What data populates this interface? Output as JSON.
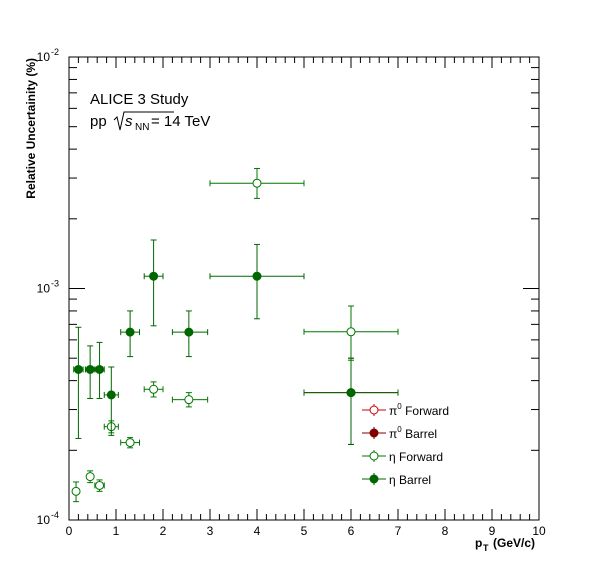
{
  "chart_data": {
    "type": "scatter",
    "title": "",
    "annotation": {
      "line1": "ALICE 3 Study",
      "line2_prefix": "pp",
      "line2_sqrt": "s",
      "line2_sub": "NN",
      "line2_suffix": "= 14 TeV"
    },
    "xlabel": {
      "main": "p",
      "sub": "T",
      "unit": "(GeV/c)"
    },
    "ylabel": "Relative Uncertainity (%)",
    "xlim": [
      0,
      10
    ],
    "ylim": [
      0.0001,
      0.01
    ],
    "yscale": "log",
    "grid": false,
    "legend_position": "bottom-right",
    "x_ticks": [
      {
        "value": 0,
        "label": "0"
      },
      {
        "value": 1,
        "label": "1"
      },
      {
        "value": 2,
        "label": "2"
      },
      {
        "value": 3,
        "label": "3"
      },
      {
        "value": 4,
        "label": "4"
      },
      {
        "value": 5,
        "label": "5"
      },
      {
        "value": 6,
        "label": "6"
      },
      {
        "value": 7,
        "label": "7"
      },
      {
        "value": 8,
        "label": "8"
      },
      {
        "value": 9,
        "label": "9"
      },
      {
        "value": 10,
        "label": "10"
      }
    ],
    "y_ticks": [
      {
        "value": 0.0001,
        "base": "10",
        "exp": "-4"
      },
      {
        "value": 0.001,
        "base": "10",
        "exp": "-3"
      },
      {
        "value": 0.01,
        "base": "10",
        "exp": "-2"
      }
    ],
    "series": [
      {
        "name": "Forward",
        "name_symbol": "π",
        "name_sup": "0",
        "color": "#cc0000",
        "marker": "open-circle",
        "points": []
      },
      {
        "name": "Barrel",
        "name_symbol": "π",
        "name_sup": "0",
        "color": "#800000",
        "marker": "filled-circle",
        "points": [
          {
            "x": 6.0,
            "y": 0.000355,
            "xlo": 5.0,
            "xhi": 7.0,
            "ylo": 0.000212,
            "yhi": 0.0005
          }
        ]
      },
      {
        "name": "Forward",
        "name_symbol": "η",
        "name_sup": "",
        "color": "#007700",
        "marker": "open-circle",
        "points": [
          {
            "x": 0.15,
            "y": 0.000133,
            "xlo": 0.1,
            "xhi": 0.2,
            "ylo": 0.00012,
            "yhi": 0.000146
          },
          {
            "x": 0.45,
            "y": 0.000154,
            "xlo": 0.4,
            "xhi": 0.5,
            "ylo": 0.000145,
            "yhi": 0.000163
          },
          {
            "x": 0.65,
            "y": 0.000141,
            "xlo": 0.55,
            "xhi": 0.75,
            "ylo": 0.000133,
            "yhi": 0.000149
          },
          {
            "x": 0.9,
            "y": 0.000253,
            "xlo": 0.75,
            "xhi": 1.05,
            "ylo": 0.000238,
            "yhi": 0.000268
          },
          {
            "x": 1.3,
            "y": 0.000216,
            "xlo": 1.1,
            "xhi": 1.5,
            "ylo": 0.000205,
            "yhi": 0.000227
          },
          {
            "x": 1.8,
            "y": 0.000367,
            "xlo": 1.6,
            "xhi": 2.0,
            "ylo": 0.00034,
            "yhi": 0.000395
          },
          {
            "x": 2.55,
            "y": 0.000331,
            "xlo": 2.2,
            "xhi": 2.95,
            "ylo": 0.000308,
            "yhi": 0.000355
          },
          {
            "x": 4.0,
            "y": 0.00285,
            "xlo": 3.0,
            "xhi": 5.0,
            "ylo": 0.00245,
            "yhi": 0.0033
          },
          {
            "x": 6.0,
            "y": 0.00065,
            "xlo": 5.0,
            "xhi": 7.0,
            "ylo": 0.00049,
            "yhi": 0.00084
          }
        ]
      },
      {
        "name": "Barrel",
        "name_symbol": "η",
        "name_sup": "",
        "color": "#006600",
        "marker": "filled-circle",
        "points": [
          {
            "x": 0.2,
            "y": 0.000447,
            "xlo": 0.1,
            "xhi": 0.3,
            "ylo": 0.000225,
            "yhi": 0.00068
          },
          {
            "x": 0.45,
            "y": 0.000447,
            "xlo": 0.35,
            "xhi": 0.55,
            "ylo": 0.000335,
            "yhi": 0.000565
          },
          {
            "x": 0.65,
            "y": 0.000447,
            "xlo": 0.55,
            "xhi": 0.75,
            "ylo": 0.000335,
            "yhi": 0.000585
          },
          {
            "x": 0.9,
            "y": 0.000347,
            "xlo": 0.75,
            "xhi": 1.05,
            "ylo": 0.000232,
            "yhi": 0.000458
          },
          {
            "x": 1.3,
            "y": 0.000648,
            "xlo": 1.1,
            "xhi": 1.5,
            "ylo": 0.000508,
            "yhi": 0.0008
          },
          {
            "x": 1.8,
            "y": 0.00113,
            "xlo": 1.6,
            "xhi": 2.0,
            "ylo": 0.00069,
            "yhi": 0.00162
          },
          {
            "x": 2.55,
            "y": 0.000648,
            "xlo": 2.2,
            "xhi": 2.95,
            "ylo": 0.000508,
            "yhi": 0.0008
          },
          {
            "x": 4.0,
            "y": 0.00113,
            "xlo": 3.0,
            "xhi": 5.0,
            "ylo": 0.00074,
            "yhi": 0.00155
          },
          {
            "x": 6.0,
            "y": 0.000355,
            "xlo": 5.0,
            "xhi": 7.0,
            "ylo": 0.000212,
            "yhi": 0.0005
          }
        ]
      }
    ]
  }
}
